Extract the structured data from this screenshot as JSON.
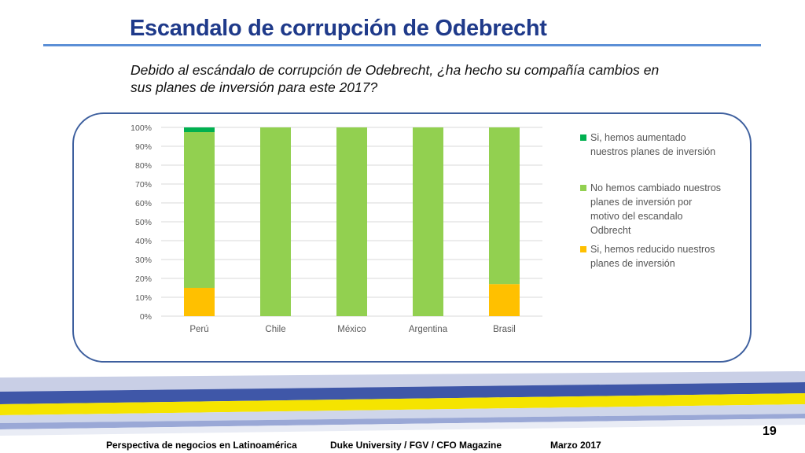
{
  "slide": {
    "title": "Escandalo de corrupción de Odebrecht",
    "question": "Debido al escándalo de corrupción de Odebrecht, ¿ha hecho su compañía cambios en sus planes de inversión para este 2017?",
    "page_number": "19"
  },
  "footer": {
    "left": "Perspectiva de negocios en Latinoamérica",
    "center": "Duke University / FGV / CFO Magazine",
    "right": "Marzo 2017"
  },
  "colors": {
    "title": "#1f3a8a",
    "increased": "#00b050",
    "unchanged": "#92d050",
    "reduced": "#ffc000",
    "frame": "#3d5f9e",
    "band_blue": "#3f57a8",
    "band_yellow": "#f5e400"
  },
  "chart_data": {
    "type": "bar",
    "stacked": true,
    "categories": [
      "Perú",
      "Chile",
      "México",
      "Argentina",
      "Brasil"
    ],
    "series": [
      {
        "name": "Si, hemos reducido nuestros planes de inversión",
        "color": "#ffc000",
        "values": [
          0.15,
          0,
          0,
          0,
          0.17
        ]
      },
      {
        "name": "No hemos cambiado nuestros planes de inversión por motivo del escandalo Odbrecht",
        "color": "#92d050",
        "values": [
          0.825,
          1.0,
          1.0,
          1.0,
          0.83
        ]
      },
      {
        "name": "Si, hemos aumentado nuestros planes de inversión",
        "color": "#00b050",
        "values": [
          0.025,
          0,
          0,
          0,
          0
        ]
      }
    ],
    "yticks": [
      "0%",
      "10%",
      "20%",
      "30%",
      "40%",
      "50%",
      "60%",
      "70%",
      "80%",
      "90%",
      "100%"
    ],
    "ylim": [
      0,
      1
    ],
    "grid": true,
    "legend_position": "right"
  },
  "legend": [
    {
      "label": "Si, hemos aumentado nuestros planes de inversión",
      "color": "#00b050"
    },
    {
      "label": "No hemos cambiado nuestros planes de inversión por motivo del escandalo Odbrecht",
      "color": "#92d050"
    },
    {
      "label": "Si, hemos reducido nuestros planes de inversión",
      "color": "#ffc000"
    }
  ]
}
